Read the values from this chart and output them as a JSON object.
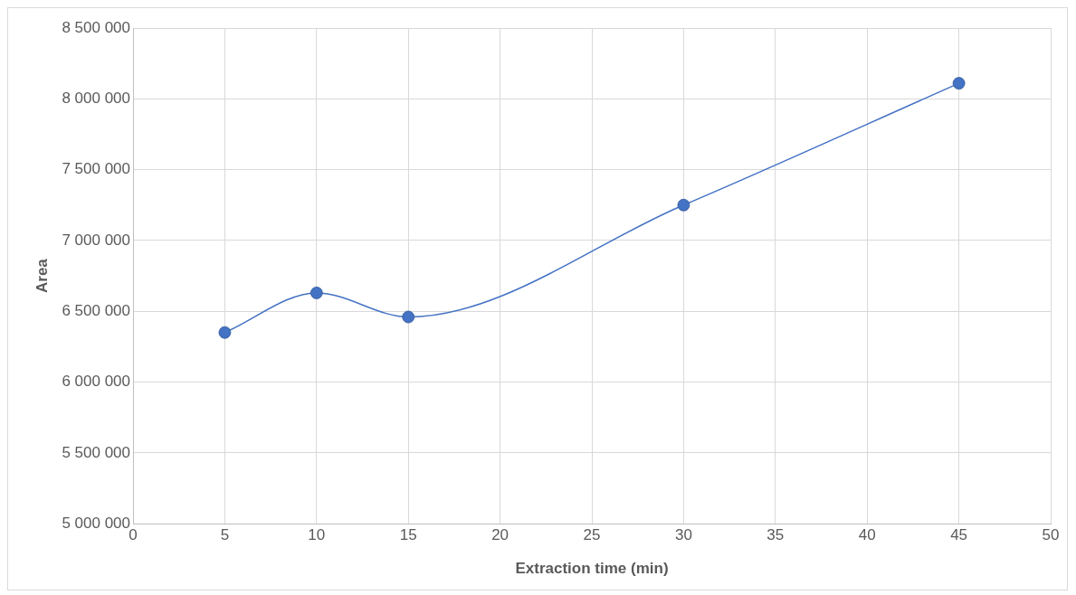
{
  "chart_data": {
    "type": "line",
    "xlabel": "Extraction time (min)",
    "ylabel": "Area",
    "x": [
      5,
      10,
      15,
      30,
      45
    ],
    "series": [
      {
        "color": "#4472c4",
        "values": [
          6350000,
          6630000,
          6460000,
          7250000,
          8110000
        ]
      }
    ],
    "xlim": [
      0,
      50
    ],
    "xticks": [
      0,
      5,
      10,
      15,
      20,
      25,
      30,
      35,
      40,
      45,
      50
    ],
    "ylim": [
      5000000,
      8500000
    ],
    "yticks": [
      {
        "value": 5000000,
        "label": "5 000 000"
      },
      {
        "value": 5500000,
        "label": "5 500 000"
      },
      {
        "value": 6000000,
        "label": "6 000 000"
      },
      {
        "value": 6500000,
        "label": "6 500 000"
      },
      {
        "value": 7000000,
        "label": "7 000 000"
      },
      {
        "value": 7500000,
        "label": "7 500 000"
      },
      {
        "value": 8000000,
        "label": "8 000 000"
      },
      {
        "value": 8500000,
        "label": "8 500 000"
      }
    ],
    "grid": true,
    "legend": false,
    "marker": "circle",
    "line_style": "solid"
  }
}
